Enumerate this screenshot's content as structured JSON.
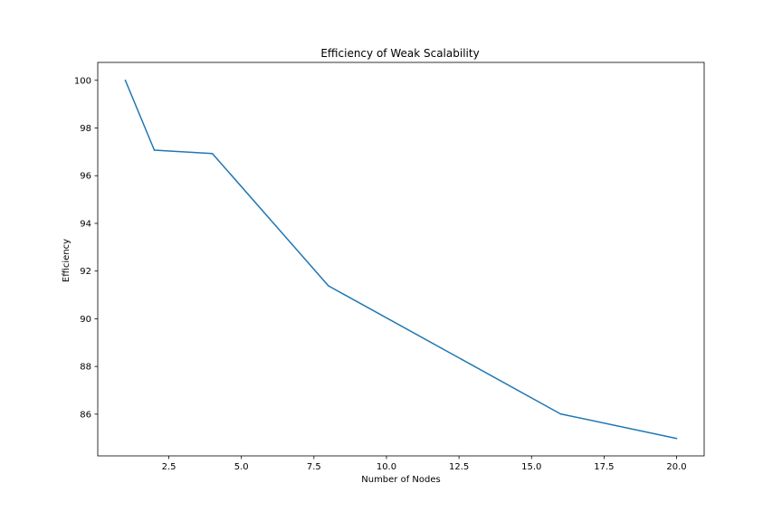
{
  "chart_data": {
    "type": "line",
    "title": "Efficiency of Weak Scalability",
    "xlabel": "Number of Nodes",
    "ylabel": "Efficiency",
    "xlim": [
      0.05,
      20.95
    ],
    "ylim": [
      84.25,
      100.75
    ],
    "xticks": [
      2.5,
      5.0,
      7.5,
      10.0,
      12.5,
      15.0,
      17.5,
      20.0
    ],
    "xtick_labels": [
      "2.5",
      "5.0",
      "7.5",
      "10.0",
      "12.5",
      "15.0",
      "17.5",
      "20.0"
    ],
    "yticks": [
      86,
      88,
      90,
      92,
      94,
      96,
      98,
      100
    ],
    "ytick_labels": [
      "86",
      "88",
      "90",
      "92",
      "94",
      "96",
      "98",
      "100"
    ],
    "grid": false,
    "series": [
      {
        "color": "#1f77b4",
        "x": [
          1,
          2,
          4,
          8,
          16,
          20
        ],
        "y": [
          100.0,
          97.07,
          96.93,
          91.38,
          86.01,
          84.98
        ]
      }
    ]
  }
}
